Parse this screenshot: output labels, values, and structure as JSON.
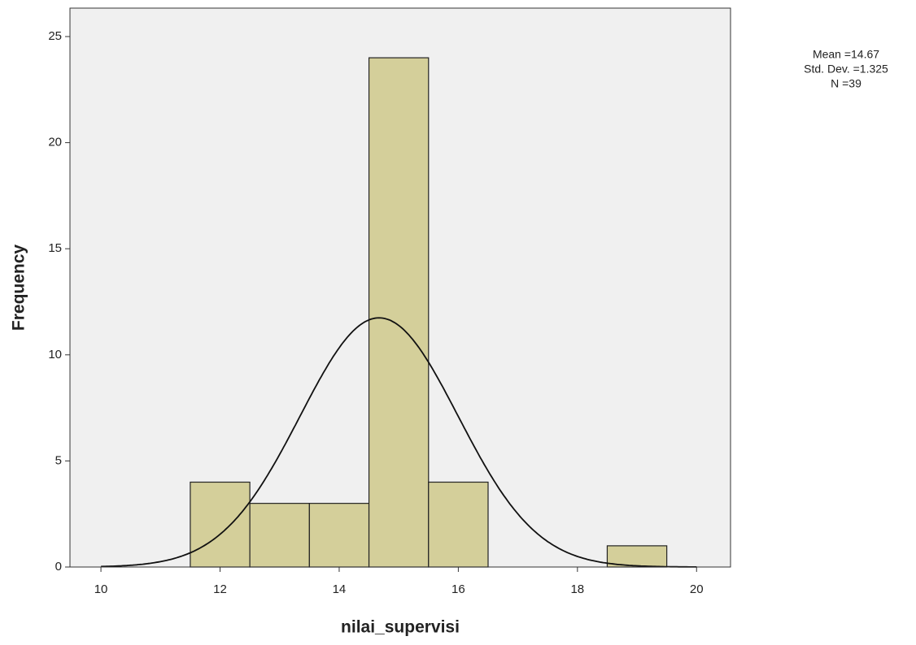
{
  "chart_data": {
    "type": "histogram",
    "x_label": "nilai_supervisi",
    "y_label": "Frequency",
    "bins": [
      11.5,
      12.5,
      13.5,
      14.5,
      15.5,
      16.5,
      17.5,
      18.5,
      19.5
    ],
    "values": [
      4,
      3,
      3,
      24,
      4,
      0,
      0,
      1
    ],
    "color": "#d4cf9a",
    "xlim": [
      9.48,
      20.57
    ],
    "xticks": [
      10,
      12,
      14,
      16,
      18,
      20
    ],
    "ylim": [
      0,
      26.34
    ],
    "yticks": [
      0,
      5,
      10,
      15,
      20,
      25
    ],
    "stats": [
      {
        "label": "Mean =14.67",
        "value": 14.67
      },
      {
        "label": "Std. Dev. =1.325",
        "value": 1.325
      },
      {
        "label": "N =39",
        "value": 39
      }
    ]
  }
}
